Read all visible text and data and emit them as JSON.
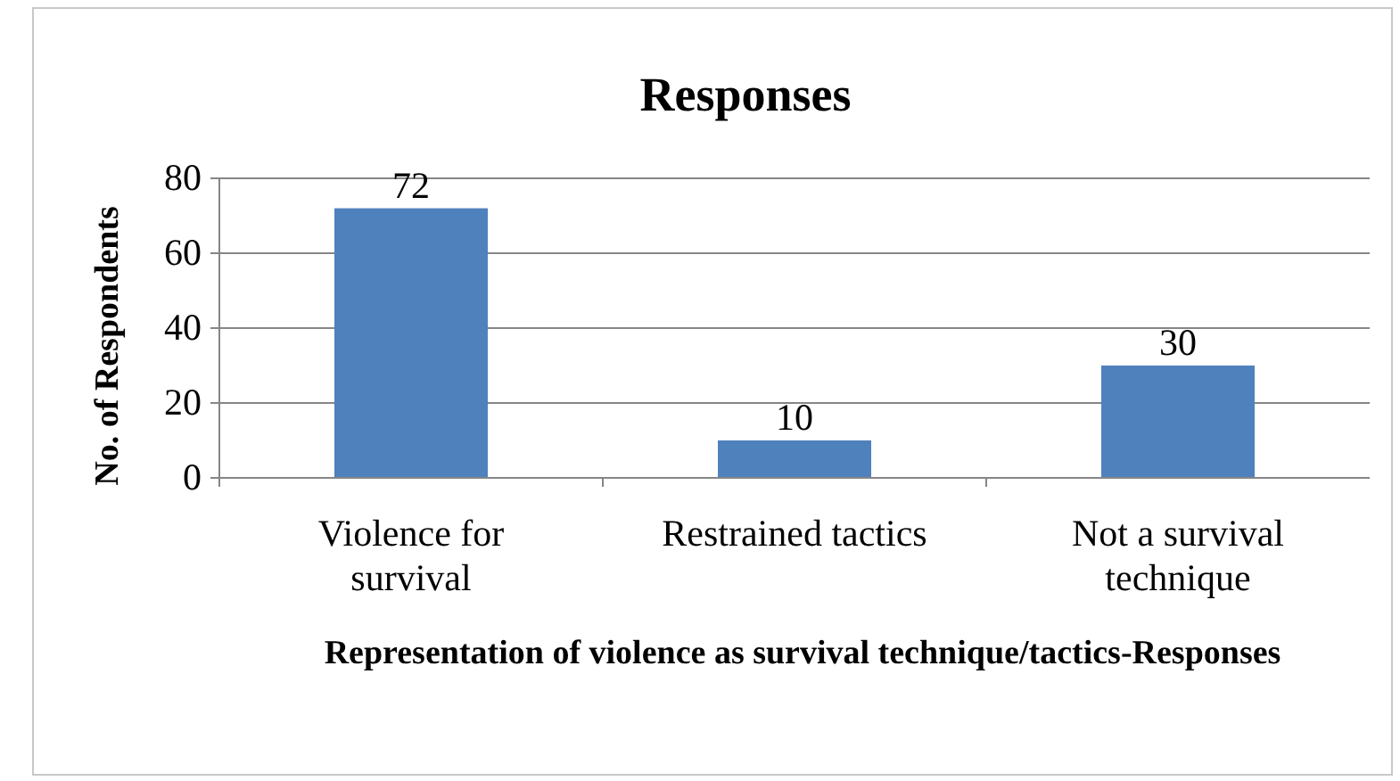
{
  "chart_data": {
    "type": "bar",
    "title": "Responses",
    "categories": [
      "Violence for survival",
      "Restrained tactics",
      "Not a survival technique"
    ],
    "values": [
      72,
      10,
      30
    ],
    "color": "#4f81bd",
    "ylim": [
      0,
      80
    ],
    "yticks": [
      0,
      20,
      40,
      60,
      80
    ],
    "grid": "y",
    "data_labels": true,
    "xlabel": "Representation of violence as survival technique/tactics-Responses",
    "ylabel": "No. of Respondents"
  }
}
